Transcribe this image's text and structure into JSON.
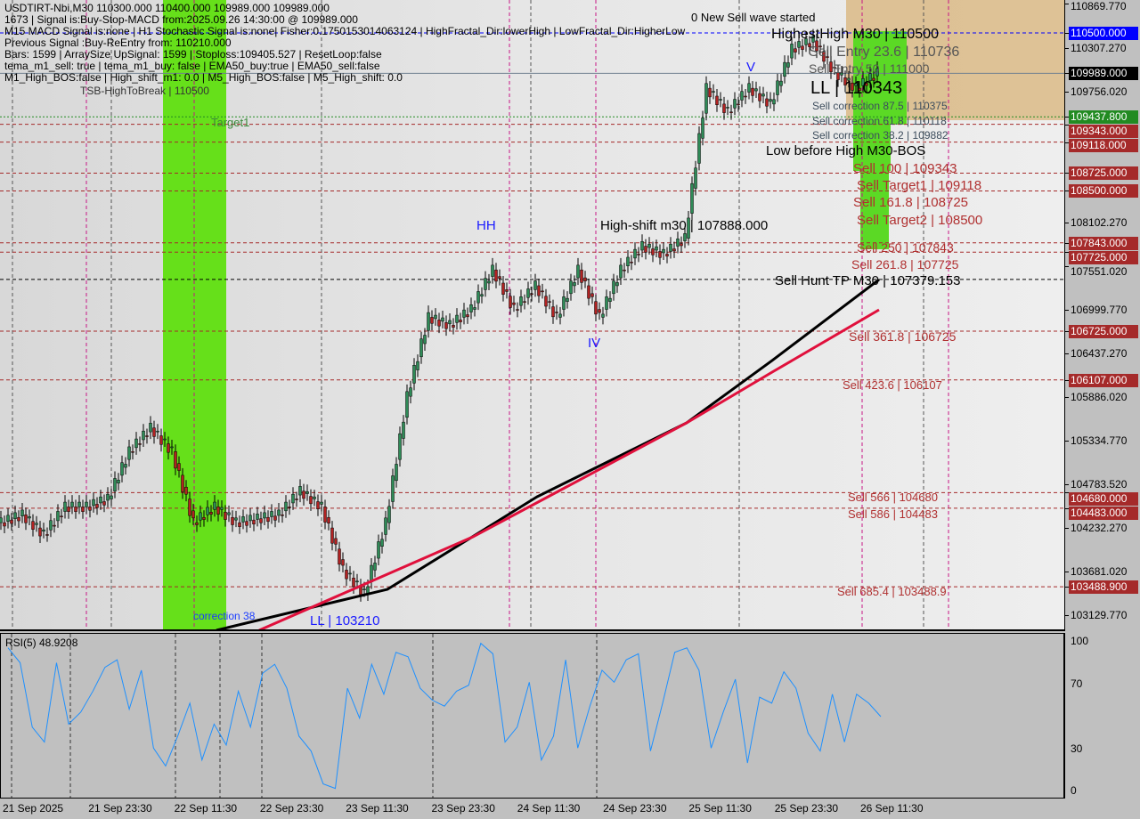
{
  "info_lines": [
    "USDTIRT-Nbi,M30  110300.000 110400.000 109989.000 109989.000",
    "1673 | Signal is:Buy-Stop-MACD from:2025.09.26 14:30:00 @ 109989.000",
    "M15 MACD Signal is:none | H1 Stochastic Signal is:none| Fisher:0.1750153014063124 | HighFractal_Dir:lowerHigh | LowFractal_Dir:HigherLow",
    "Previous Signal :Buy-ReEntry from: 110210.000",
    "Bars: 1599 | ArraySize UpSignal: 1599 | Stoploss:109405.527 | ResetLoop:false",
    "tema_m1_sell: true | tema_m1_buy: false | EMA50_buy:true | EMA50_sell:false",
    "M1_High_BOS:false | High_shift_m1: 0.0 | M5_High_BOS:false | M5_High_shift: 0.0"
  ],
  "annotations": [
    {
      "text": "TSB-HighToBreak | 110500",
      "color": "#333333",
      "size": 12
    },
    {
      "text": "Target1",
      "color": "#3a8a3a",
      "size": 13
    },
    {
      "text": "correction 38",
      "color": "#1a3cff",
      "size": 12
    },
    {
      "text": "LL | 103210",
      "color": "#1a1aff",
      "size": 15
    },
    {
      "text": "HH",
      "color": "#1a1aff",
      "size": 15
    },
    {
      "text": "High-shift m30 | 107888.000",
      "color": "#000000",
      "size": 15
    },
    {
      "text": "IV",
      "color": "#1a1aff",
      "size": 15
    },
    {
      "text": "V",
      "color": "#1a1aff",
      "size": 15
    },
    {
      "text": "0 New Sell wave started",
      "color": "#000000",
      "size": 13
    },
    {
      "text": "HighestHigh M30 | 110500",
      "color": "#000000",
      "size": 16
    },
    {
      "text": "Sell Entry 23.6 | 110736",
      "color": "#555555",
      "size": 16
    },
    {
      "text": "Sell Entry 50 | 111000",
      "color": "#555555",
      "size": 14
    },
    {
      "text": "LL | 110343",
      "color": "#000000",
      "size": 20
    },
    {
      "text": "Sell correction 87.5 | 110375",
      "color": "#3d4d5d",
      "size": 12
    },
    {
      "text": "Sell correction 61.8 | 110118",
      "color": "#3d4d5d",
      "size": 12
    },
    {
      "text": "Sell correction 38.2 | 109882",
      "color": "#3d4d5d",
      "size": 12
    },
    {
      "text": "Low before High  M30-BOS",
      "color": "#000000",
      "size": 15
    },
    {
      "text": "Sell 100 | 109343",
      "color": "#b03030",
      "size": 15
    },
    {
      "text": "Sell Target1 | 109118",
      "color": "#b03030",
      "size": 15
    },
    {
      "text": "Sell 161.8 | 108725",
      "color": "#b03030",
      "size": 15
    },
    {
      "text": "Sell Target2 | 108500",
      "color": "#b03030",
      "size": 15
    },
    {
      "text": "Sell 250 | 107843",
      "color": "#b03030",
      "size": 14
    },
    {
      "text": "Sell 261.8 | 107725",
      "color": "#b03030",
      "size": 14
    },
    {
      "text": "Sell Hunt TP M30 | 107379.153",
      "color": "#000000",
      "size": 15
    },
    {
      "text": "Sell  361.8 | 106725",
      "color": "#b03030",
      "size": 14
    },
    {
      "text": "Sell  423.6 | 106107",
      "color": "#b03030",
      "size": 13
    },
    {
      "text": "Sell  566 | 104680",
      "color": "#b03030",
      "size": 13
    },
    {
      "text": "Sell  586 | 104483",
      "color": "#b03030",
      "size": 13
    },
    {
      "text": "Sell  685.4 | 103488.9",
      "color": "#b03030",
      "size": 13
    }
  ],
  "price_axis": [
    {
      "text": "110869.770",
      "price": 110869.77
    },
    {
      "text": "110500.000",
      "price": 110500,
      "bg": "#0000ff"
    },
    {
      "text": "110307.270",
      "price": 110307.27
    },
    {
      "text": "109989.000",
      "price": 109989,
      "bg": "#000000"
    },
    {
      "text": "109756.020",
      "price": 109756.02
    },
    {
      "text": "109437.800",
      "price": 109437.8,
      "bg": "#228b22"
    },
    {
      "text": "109343.000",
      "price": 109343,
      "bg": "#a52a2a"
    },
    {
      "text": "109118.000",
      "price": 109118,
      "bg": "#a52a2a"
    },
    {
      "text": "108725.000",
      "price": 108725,
      "bg": "#a52a2a"
    },
    {
      "text": "108500.000",
      "price": 108500,
      "bg": "#a52a2a"
    },
    {
      "text": "108102.270",
      "price": 108102.27
    },
    {
      "text": "107843.000",
      "price": 107843,
      "bg": "#a52a2a"
    },
    {
      "text": "107725.000",
      "price": 107725,
      "bg": "#a52a2a"
    },
    {
      "text": "107551.020",
      "price": 107551.02
    },
    {
      "text": "106999.770",
      "price": 106999.77
    },
    {
      "text": "106725.000",
      "price": 106725,
      "bg": "#a52a2a"
    },
    {
      "text": "106437.270",
      "price": 106437.27
    },
    {
      "text": "106107.000",
      "price": 106107,
      "bg": "#a52a2a"
    },
    {
      "text": "105886.020",
      "price": 105886.02
    },
    {
      "text": "105334.770",
      "price": 105334.77
    },
    {
      "text": "104783.520",
      "price": 104783.52
    },
    {
      "text": "104680.000",
      "price": 104680,
      "bg": "#a52a2a"
    },
    {
      "text": "104483.000",
      "price": 104483,
      "bg": "#a52a2a"
    },
    {
      "text": "104232.270",
      "price": 104232.27
    },
    {
      "text": "103681.020",
      "price": 103681.02
    },
    {
      "text": "103488.900",
      "price": 103488.9,
      "bg": "#a52a2a"
    },
    {
      "text": "103129.770",
      "price": 103129.77
    }
  ],
  "time_axis": [
    "21 Sep 2025",
    "21 Sep 23:30",
    "22 Sep 11:30",
    "22 Sep 23:30",
    "23 Sep 11:30",
    "23 Sep 23:30",
    "24 Sep 11:30",
    "24 Sep 23:30",
    "25 Sep 11:30",
    "25 Sep 23:30",
    "26 Sep 11:30"
  ],
  "rsi": {
    "label": "RSI(5) 48.9208",
    "ticks": [
      "100",
      "70",
      "30",
      "0"
    ]
  },
  "chart_data": [
    {
      "type": "candlestick",
      "symbol": "USDTIRT-Nbi",
      "timeframe": "M30",
      "ylim": [
        103000,
        110900
      ],
      "series": [
        {
          "start": "2025-09-21 11:30",
          "step_hours": 3,
          "close": [
            104300,
            104400,
            104150,
            104500,
            104500,
            104600,
            105200,
            105500,
            105200,
            104300,
            104500,
            104300,
            104350,
            104400,
            104700,
            104500,
            103700,
            103400,
            104300,
            105900,
            106900,
            106800,
            107000,
            107500,
            107000,
            107300,
            106900,
            107500,
            106900,
            107500,
            107800,
            107700,
            107900,
            109800,
            109500,
            109800,
            109600,
            110300,
            110400,
            110000,
            109800,
            109989
          ]
        },
        {
          "color": "#000000",
          "points": [
            [
              "2025-09-22 17:30",
              102938
            ],
            [
              "2025-09-23 17:30",
              103456
            ],
            [
              "2025-09-24 14:30",
              104628
            ],
            [
              "2025-09-25 11:30",
              105564
            ],
            [
              "2025-09-25 23:30",
              106353
            ],
            [
              "2025-09-26 14:30",
              107378
            ]
          ]
        },
        {
          "color": "#e0103c",
          "points": [
            [
              "2025-09-22 23:30",
              102938
            ],
            [
              "2025-09-24 05:30",
              104121
            ],
            [
              "2025-09-25 11:30",
              105564
            ],
            [
              "2025-09-25 23:30",
              106206
            ],
            [
              "2025-09-26 14:30",
              106995
            ]
          ]
        }
      ],
      "levels": [
        {
          "price": 110500,
          "color": "#0000ff",
          "style": "dash"
        },
        {
          "price": 109989,
          "color": "#708090",
          "style": "solid"
        },
        {
          "price": 109437.8,
          "color": "#228b22",
          "style": "dot"
        },
        {
          "price": 109343,
          "color": "#a52a2a",
          "style": "dash"
        },
        {
          "price": 109118,
          "color": "#a52a2a",
          "style": "dash"
        },
        {
          "price": 108725,
          "color": "#a52a2a",
          "style": "dash"
        },
        {
          "price": 108500,
          "color": "#a52a2a",
          "style": "dash"
        },
        {
          "price": 107843,
          "color": "#a52a2a",
          "style": "dash"
        },
        {
          "price": 107725,
          "color": "#a52a2a",
          "style": "dash"
        },
        {
          "price": 107379.153,
          "color": "#000000",
          "style": "dash"
        },
        {
          "price": 106725,
          "color": "#a52a2a",
          "style": "dash"
        },
        {
          "price": 106107,
          "color": "#a52a2a",
          "style": "dash"
        },
        {
          "price": 104680,
          "color": "#a52a2a",
          "style": "dash"
        },
        {
          "price": 104483,
          "color": "#a52a2a",
          "style": "dash"
        },
        {
          "price": 103488.9,
          "color": "#a52a2a",
          "style": "dash"
        }
      ]
    },
    {
      "type": "line",
      "title": "RSI(5) 48.9208",
      "ylim": [
        0,
        100
      ],
      "yticks": [
        0,
        30,
        70,
        100
      ],
      "color": "#1e90ff",
      "values": [
        96,
        86,
        43,
        33,
        86,
        45,
        53,
        67,
        83,
        88,
        55,
        81,
        29,
        17,
        37,
        59,
        21,
        45,
        31,
        67,
        43,
        79,
        85,
        69,
        37,
        27,
        5,
        2,
        69,
        49,
        85,
        65,
        93,
        90,
        69,
        61,
        57,
        67,
        71,
        99,
        92,
        33,
        43,
        73,
        21,
        37,
        88,
        29,
        57,
        81,
        73,
        88,
        92,
        27,
        59,
        93,
        96,
        81,
        29,
        53,
        75,
        19,
        63,
        59,
        80,
        69,
        39,
        27,
        65,
        33,
        65,
        59,
        50
      ]
    }
  ]
}
